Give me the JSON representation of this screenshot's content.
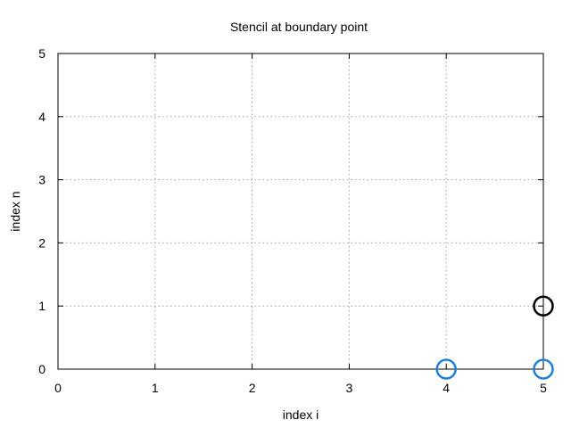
{
  "chart_data": {
    "type": "scatter",
    "title": "Stencil at boundary point",
    "xlabel": "index i",
    "ylabel": "index n",
    "xlim": [
      0,
      5
    ],
    "ylim": [
      0,
      5
    ],
    "xticks": [
      0,
      1,
      2,
      3,
      4,
      5
    ],
    "yticks": [
      0,
      1,
      2,
      3,
      4,
      5
    ],
    "grid": true,
    "legend": "none",
    "series": [
      {
        "color": "#1e7fd4",
        "marker": "open-circle",
        "points": [
          {
            "x": 4,
            "y": 0
          },
          {
            "x": 5,
            "y": 0
          }
        ]
      },
      {
        "color": "#000000",
        "marker": "open-circle",
        "points": [
          {
            "x": 5,
            "y": 1
          }
        ]
      }
    ]
  }
}
